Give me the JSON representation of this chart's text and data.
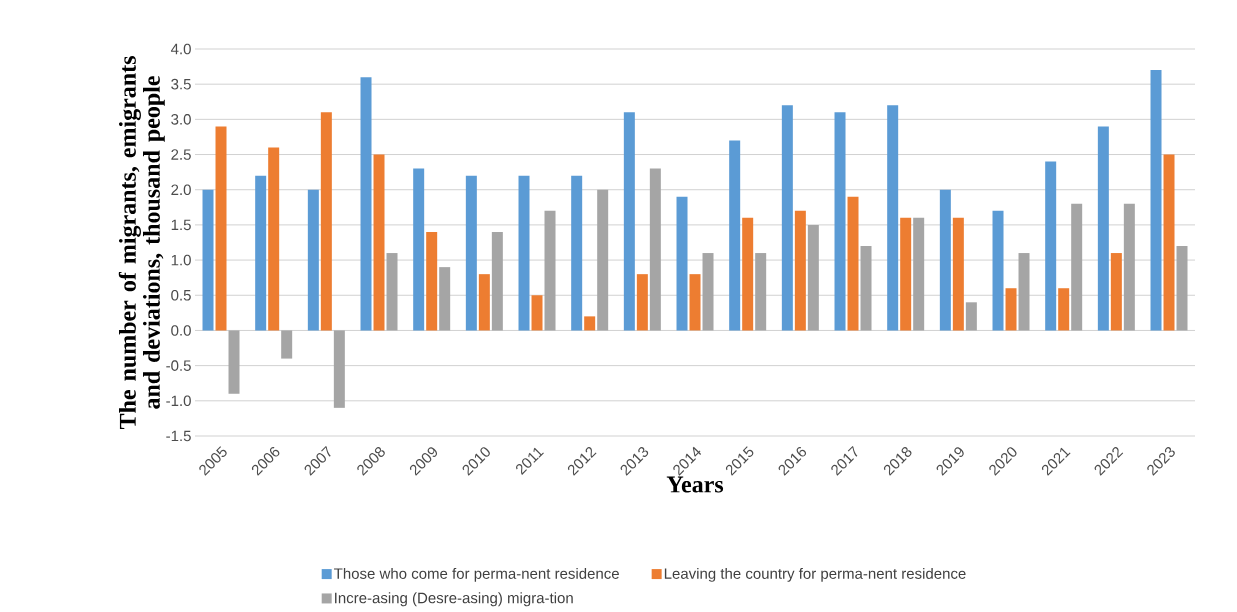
{
  "chart_data": {
    "type": "bar",
    "xlabel": "Years",
    "ylabel": "The number of migrants, emigrants and deviations, thousand people",
    "categories": [
      "2005",
      "2006",
      "2007",
      "2008",
      "2009",
      "2010",
      "2011",
      "2012",
      "2013",
      "2014",
      "2015",
      "2016",
      "2017",
      "2018",
      "2019",
      "2020",
      "2021",
      "2022",
      "2023"
    ],
    "series": [
      {
        "name": "Those who come for perma-nent residence",
        "color": "#5b9bd5",
        "values": [
          2.0,
          2.2,
          2.0,
          3.6,
          2.3,
          2.2,
          2.2,
          2.2,
          3.1,
          1.9,
          2.7,
          3.2,
          3.1,
          3.2,
          2.0,
          1.7,
          2.4,
          2.9,
          3.7
        ]
      },
      {
        "name": "Leaving the country for perma-nent residence",
        "color": "#ed7d31",
        "values": [
          2.9,
          2.6,
          3.1,
          2.5,
          1.4,
          0.8,
          0.5,
          0.2,
          0.8,
          0.8,
          1.6,
          1.7,
          1.9,
          1.6,
          1.6,
          0.6,
          0.6,
          1.1,
          2.5
        ]
      },
      {
        "name": "Incre-asing (Desre-asing) migra-tion",
        "color": "#a5a5a5",
        "values": [
          -0.9,
          -0.4,
          -1.1,
          1.1,
          0.9,
          1.4,
          1.7,
          2.0,
          2.3,
          1.1,
          1.1,
          1.5,
          1.2,
          1.6,
          0.4,
          1.1,
          1.8,
          1.8,
          1.2
        ]
      }
    ],
    "ylim": [
      -1.5,
      4.0
    ],
    "yticks": [
      {
        "value": -1.5,
        "label": "-1.5"
      },
      {
        "value": -1.0,
        "label": "-1.0"
      },
      {
        "value": -0.5,
        "label": "-0.5"
      },
      {
        "value": 0,
        "label": "0.0"
      },
      {
        "value": 0.5,
        "label": "0.5"
      },
      {
        "value": 1.0,
        "label": "1.0"
      },
      {
        "value": 1.5,
        "label": "1.5"
      },
      {
        "value": 2.0,
        "label": "2.0"
      },
      {
        "value": 2.5,
        "label": "2.5"
      },
      {
        "value": 3.0,
        "label": "3.0"
      },
      {
        "value": 3.5,
        "label": "3.5"
      },
      {
        "value": 4.0,
        "label": "4.0"
      }
    ],
    "grid": "y",
    "legend": "bottom"
  }
}
